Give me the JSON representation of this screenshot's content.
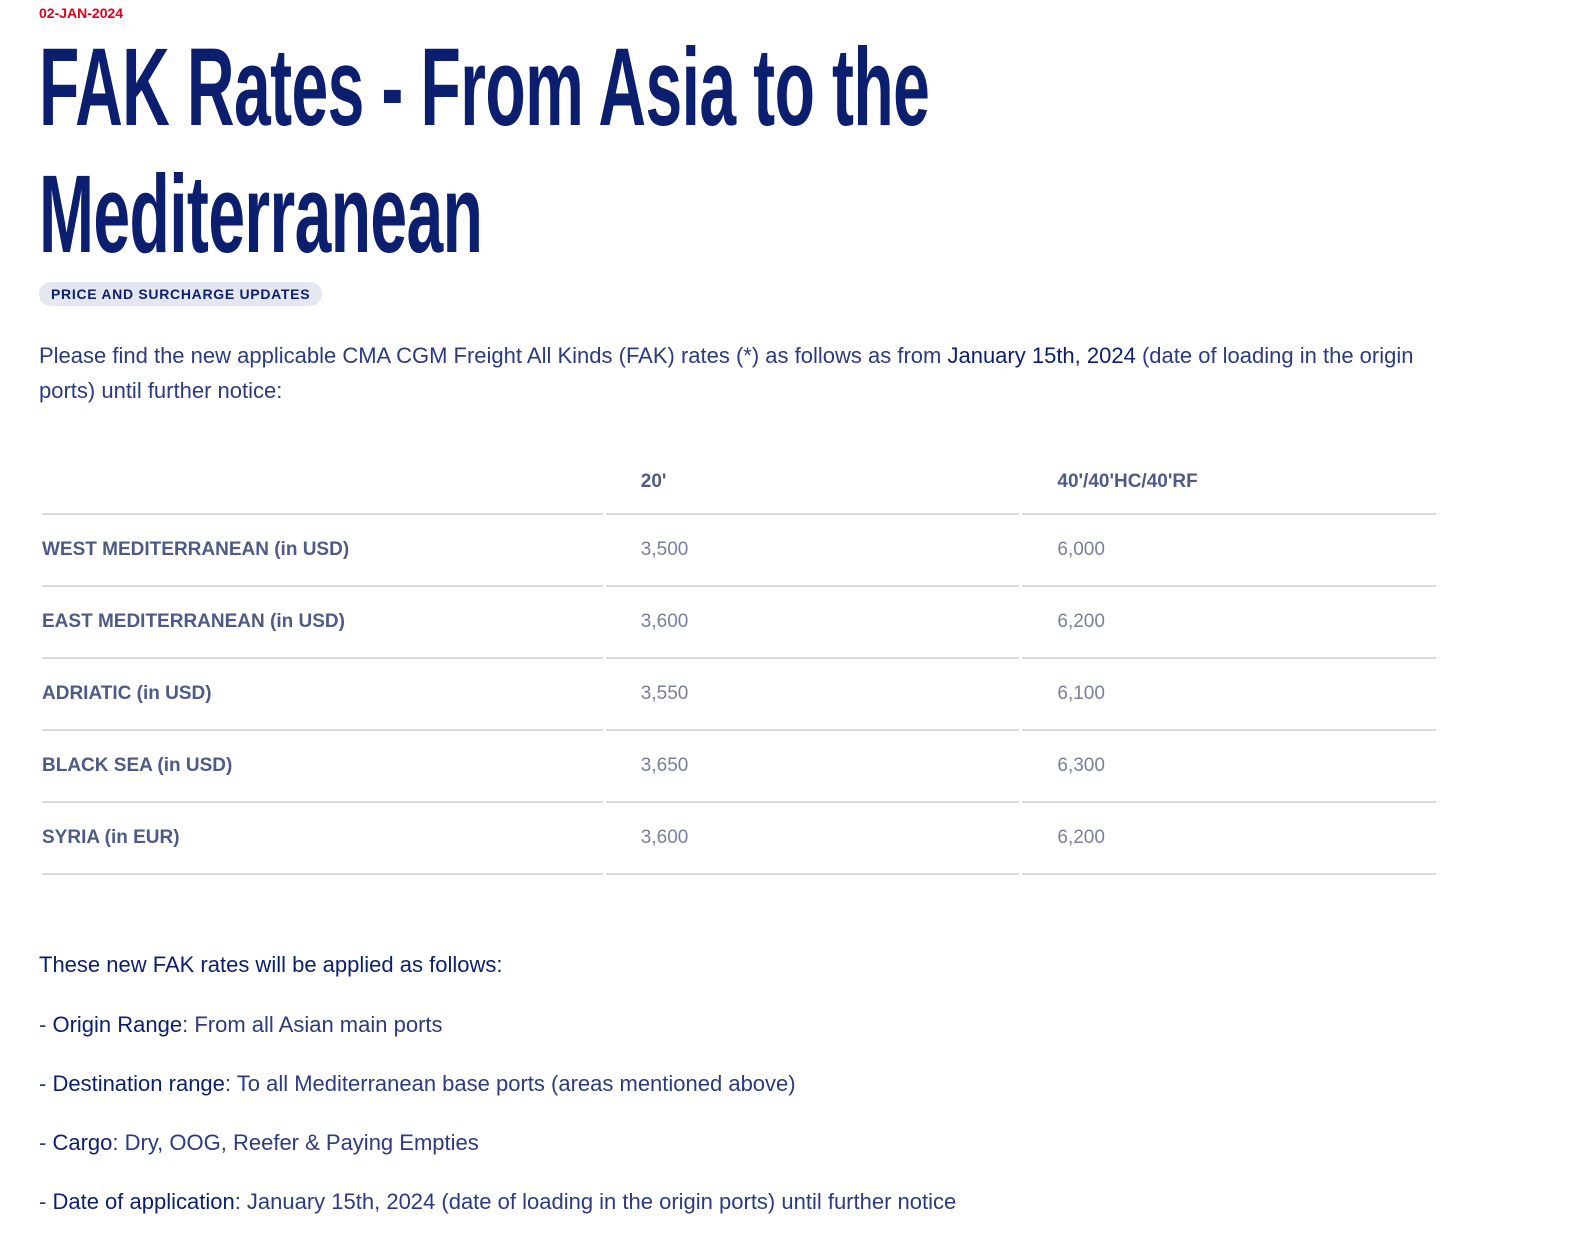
{
  "date": "02-JAN-2024",
  "title_line1": "FAK Rates - From Asia to the",
  "title_line2": "Mediterranean",
  "category_tag": "PRICE AND SURCHARGE UPDATES",
  "intro": {
    "before": "Please find the new applicable CMA CGM Freight All Kinds (FAK) rates (*) as follows as from ",
    "bold": "January 15th, 2024",
    "after": " (date of loading in the origin ports) until further notice:"
  },
  "table": {
    "headers": [
      "",
      "20'",
      "40'/40'HC/40'RF"
    ],
    "rows": [
      {
        "label": "WEST MEDITERRANEAN (in USD)",
        "v20": "3,500",
        "v40": "6,000"
      },
      {
        "label": "EAST MEDITERRANEAN (in USD)",
        "v20": "3,600",
        "v40": "6,200"
      },
      {
        "label": "ADRIATIC (in USD)",
        "v20": "3,550",
        "v40": "6,100"
      },
      {
        "label": "BLACK SEA (in USD)",
        "v20": "3,650",
        "v40": "6,300"
      },
      {
        "label": "SYRIA (in EUR)",
        "v20": "3,600",
        "v40": "6,200"
      }
    ]
  },
  "apply_heading": "These new FAK rates will be applied as follows:",
  "bullets": [
    {
      "prefix": "- ",
      "key": "Origin Range",
      "value": ": From all Asian main ports"
    },
    {
      "prefix": "- ",
      "key": "Destination range",
      "value": ": To all Mediterranean base ports (areas mentioned above)"
    },
    {
      "prefix": "- ",
      "key": "Cargo",
      "value": ": Dry, OOG, Reefer & Paying Empties"
    },
    {
      "prefix": "- ",
      "key": "Date of application",
      "value": ": January 15th, 2024 (date of loading in the origin ports) until further notice"
    }
  ]
}
